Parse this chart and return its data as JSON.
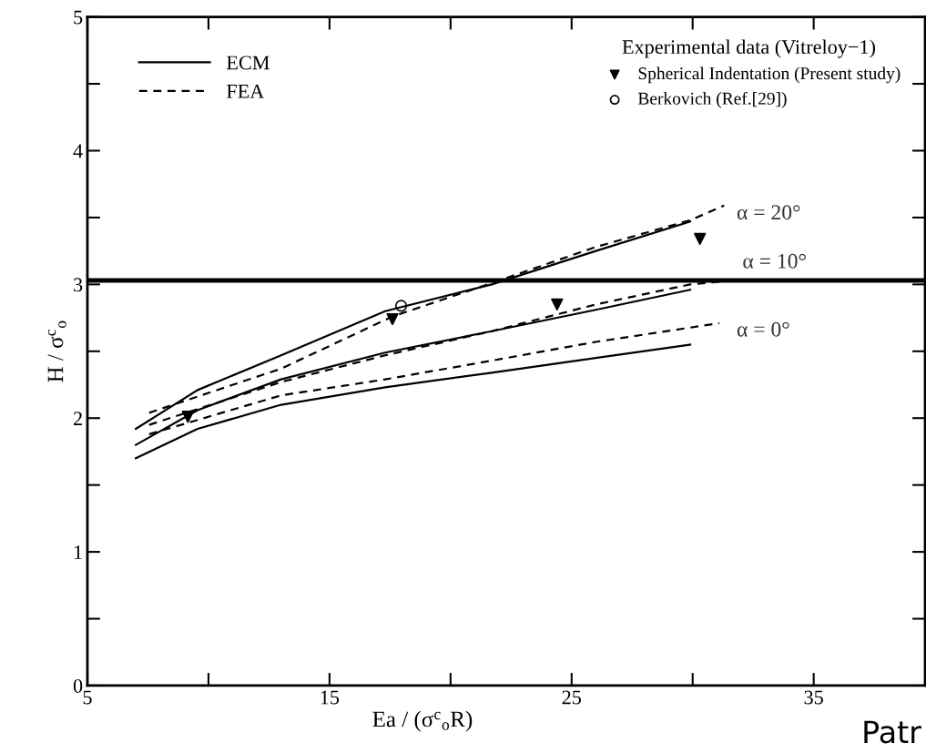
{
  "chart_data": {
    "type": "line",
    "xlabel": "Ea / (σ$^{c}$$_{o}$R)",
    "ylabel": "H / σ$^{c}$$_{o}$",
    "legend_title": "Experimental data (Vitreloy−1)",
    "series": [
      {
        "name": "ECM",
        "color": "#000000",
        "line_style": "solid",
        "marker": "none",
        "x": [
          7.0,
          9.55,
          13.0,
          17.3,
          21.7,
          26.0,
          29.9
        ],
        "values": [
          1.92,
          2.21,
          2.47,
          2.8,
          3.0,
          3.25,
          3.47
        ]
      },
      {
        "color": "#000000",
        "line_style": "solid",
        "marker": "none",
        "x": [
          7.0,
          9.55,
          13.0,
          17.3,
          21.7,
          26.0,
          29.9
        ],
        "values": [
          1.8,
          2.06,
          2.29,
          2.49,
          2.65,
          2.81,
          2.96
        ]
      },
      {
        "color": "#000000",
        "line_style": "solid",
        "marker": "none",
        "x": [
          7.0,
          9.55,
          13.0,
          17.3,
          21.7,
          26.0,
          29.9
        ],
        "values": [
          1.7,
          1.92,
          2.1,
          2.23,
          2.34,
          2.45,
          2.55
        ]
      },
      {
        "name": "FEA",
        "color": "#000000",
        "line_style": "dashed",
        "marker": "none",
        "x": [
          7.55,
          13.0,
          17.6,
          21.7,
          26.0,
          29.9,
          31.3
        ],
        "values": [
          2.04,
          2.37,
          2.76,
          3.01,
          3.28,
          3.48,
          3.59
        ]
      },
      {
        "color": "#000000",
        "line_style": "dashed",
        "marker": "none",
        "x": [
          7.55,
          13.0,
          17.3,
          21.7,
          26.0,
          29.9,
          31.1
        ],
        "values": [
          1.95,
          2.27,
          2.47,
          2.65,
          2.85,
          3.0,
          3.02
        ]
      },
      {
        "color": "#000000",
        "line_style": "dashed",
        "marker": "none",
        "x": [
          7.55,
          13.0,
          17.3,
          21.7,
          26.0,
          31.1
        ],
        "values": [
          1.88,
          2.17,
          2.29,
          2.43,
          2.57,
          2.71
        ]
      },
      {
        "name": "Spherical Indentation (Present study)",
        "type": "scatter",
        "color": "#000000",
        "marker": "triangle",
        "x": [
          9.15,
          17.6,
          24.4,
          30.3
        ],
        "values": [
          2.01,
          2.74,
          2.85,
          3.34
        ]
      },
      {
        "name": "Berkovich (Ref.[29])",
        "type": "scatter",
        "color": "#000000",
        "marker": "circle",
        "x": [
          17.96
        ],
        "values": [
          2.84
        ]
      }
    ],
    "ref_lines": [
      {
        "axis": "y",
        "value": 3.03,
        "color": "#000000",
        "line_style": "solid"
      }
    ],
    "annotations": [
      "α = 20°",
      "α = 10°",
      "α = 0°",
      "Patr"
    ],
    "xlim": [
      5,
      39.6
    ],
    "ylim": [
      0,
      5
    ],
    "xticks": [
      5,
      {
        "value": 10,
        "label": null
      },
      15,
      {
        "value": 20,
        "label": null
      },
      25,
      {
        "value": 30,
        "label": null
      },
      35
    ],
    "yticks": [
      0,
      {
        "value": 0.5,
        "label": null
      },
      1,
      {
        "value": 1.5,
        "label": null
      },
      2,
      {
        "value": 2.5,
        "label": null
      },
      3,
      {
        "value": 3.5,
        "label": null
      },
      4,
      {
        "value": 4.5,
        "label": null
      },
      5
    ],
    "grid": false,
    "legend": "top right"
  }
}
